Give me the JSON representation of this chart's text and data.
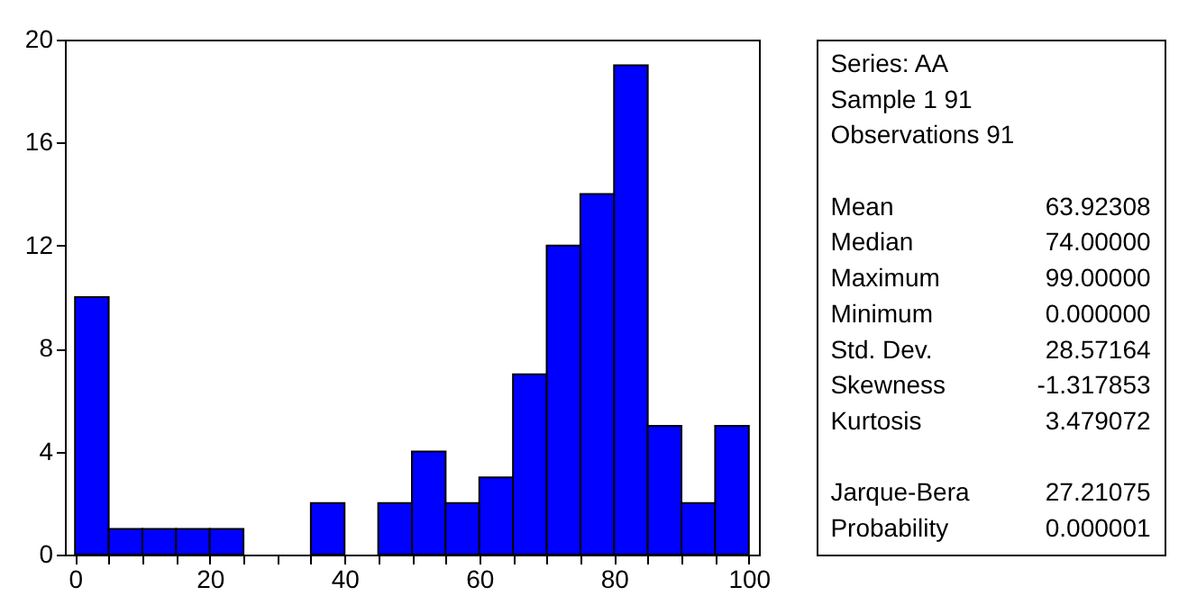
{
  "chart_data": [
    {
      "type": "histogram",
      "bins": [
        0,
        5,
        10,
        15,
        20,
        25,
        30,
        35,
        40,
        45,
        50,
        55,
        60,
        65,
        70,
        75,
        80,
        85,
        90,
        95,
        100
      ],
      "values": [
        10,
        1,
        1,
        1,
        1,
        0,
        0,
        2,
        0,
        2,
        4,
        2,
        3,
        7,
        12,
        14,
        19,
        5,
        2,
        5
      ],
      "color": "#0000ff",
      "xlim": [
        -1.5,
        101.5
      ],
      "ylim": [
        0,
        20
      ],
      "xticks": [
        0,
        {
          "value": 5,
          "label": null
        },
        {
          "value": 10,
          "label": null
        },
        {
          "value": 15,
          "label": null
        },
        20,
        {
          "value": 25,
          "label": null
        },
        {
          "value": 30,
          "label": null
        },
        {
          "value": 35,
          "label": null
        },
        40,
        {
          "value": 45,
          "label": null
        },
        {
          "value": 50,
          "label": null
        },
        {
          "value": 55,
          "label": null
        },
        60,
        {
          "value": 65,
          "label": null
        },
        {
          "value": 70,
          "label": null
        },
        {
          "value": 75,
          "label": null
        },
        80,
        {
          "value": 85,
          "label": null
        },
        {
          "value": 90,
          "label": null
        },
        {
          "value": 95,
          "label": null
        },
        100
      ],
      "yticks": [
        0,
        4,
        8,
        12,
        16,
        20
      ]
    },
    {
      "type": "other",
      "annotations": [
        "Series: AA",
        "Sample 1 91",
        "Observations 91"
      ],
      "categories": [
        null,
        "Mean",
        "Median",
        "Maximum",
        "Minimum",
        "Std. Dev.",
        "Skewness",
        "Kurtosis",
        null,
        "Jarque-Bera",
        "Probability"
      ],
      "value_labels": [
        null,
        "63.92308",
        "74.00000",
        "99.00000",
        "0.000000",
        "28.57164",
        "-1.317853",
        "3.479072",
        null,
        "27.21075",
        "0.000001"
      ]
    }
  ]
}
